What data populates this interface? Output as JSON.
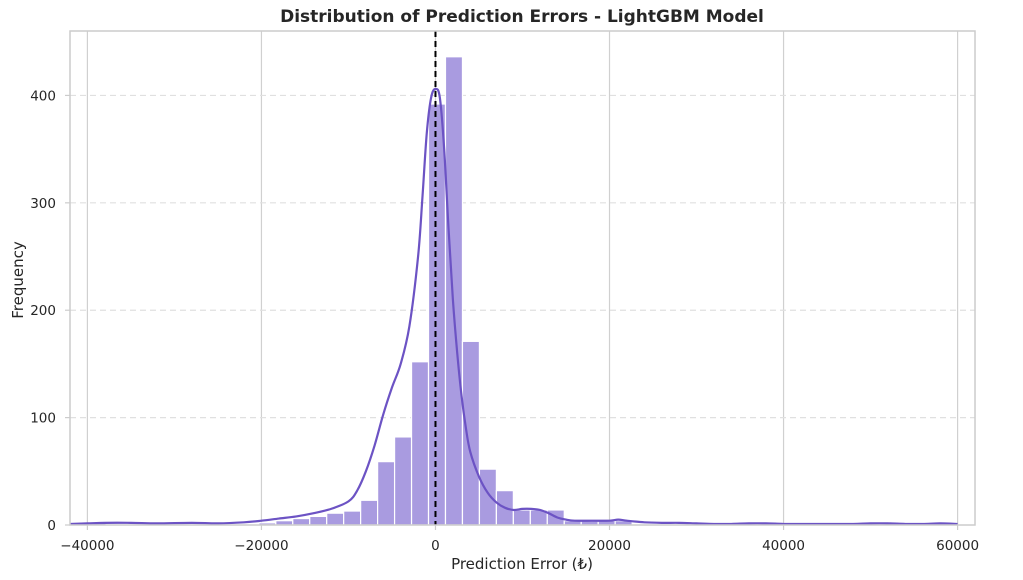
{
  "chart_data": {
    "type": "bar",
    "title": "Distribution of Prediction Errors - LightGBM Model",
    "xlabel": "Prediction Error (₺)",
    "ylabel": "Frequency",
    "xlim": [
      -42000,
      62000
    ],
    "ylim": [
      0,
      460
    ],
    "x_ticks": [
      -40000,
      -20000,
      0,
      20000,
      40000,
      60000
    ],
    "x_tick_labels": [
      "−40000",
      "−20000",
      "0",
      "20000",
      "40000",
      "60000"
    ],
    "y_ticks": [
      0,
      100,
      200,
      300,
      400
    ],
    "y_tick_labels": [
      "0",
      "100",
      "200",
      "300",
      "400"
    ],
    "grid": true,
    "bin_width": 1950,
    "bins": [
      {
        "x0": -39800,
        "count": 2
      },
      {
        "x0": -35900,
        "count": 1
      },
      {
        "x0": -33950,
        "count": 1
      },
      {
        "x0": -28100,
        "count": 1
      },
      {
        "x0": -20300,
        "count": 2
      },
      {
        "x0": -18350,
        "count": 4
      },
      {
        "x0": -16400,
        "count": 6
      },
      {
        "x0": -14450,
        "count": 8
      },
      {
        "x0": -12500,
        "count": 11
      },
      {
        "x0": -10550,
        "count": 13
      },
      {
        "x0": -8600,
        "count": 23
      },
      {
        "x0": -6650,
        "count": 59
      },
      {
        "x0": -4700,
        "count": 82
      },
      {
        "x0": -2750,
        "count": 152
      },
      {
        "x0": -800,
        "count": 392
      },
      {
        "x0": 1150,
        "count": 436
      },
      {
        "x0": 3100,
        "count": 171
      },
      {
        "x0": 5050,
        "count": 52
      },
      {
        "x0": 7000,
        "count": 32
      },
      {
        "x0": 8950,
        "count": 14
      },
      {
        "x0": 10900,
        "count": 14
      },
      {
        "x0": 12850,
        "count": 14
      },
      {
        "x0": 14800,
        "count": 4
      },
      {
        "x0": 16750,
        "count": 4
      },
      {
        "x0": 18700,
        "count": 4
      },
      {
        "x0": 20650,
        "count": 4
      },
      {
        "x0": 26500,
        "count": 1
      },
      {
        "x0": 36250,
        "count": 1
      },
      {
        "x0": 49900,
        "count": 1
      },
      {
        "x0": 57700,
        "count": 2
      }
    ],
    "kde": {
      "x": [
        -42000,
        -40000,
        -38000,
        -35000,
        -32000,
        -28000,
        -25000,
        -22000,
        -20000,
        -18000,
        -16000,
        -14000,
        -12000,
        -10000,
        -9000,
        -8000,
        -7000,
        -6000,
        -5000,
        -4000,
        -3000,
        -2000,
        -1500,
        -1000,
        -500,
        0,
        500,
        1000,
        1500,
        2000,
        2500,
        3000,
        3500,
        4000,
        5000,
        6000,
        7000,
        8000,
        9000,
        10000,
        11000,
        12000,
        13000,
        14000,
        15000,
        16000,
        18000,
        20000,
        21000,
        22000,
        24000,
        26000,
        28000,
        30000,
        32000,
        34000,
        36000,
        38000,
        40000,
        42000,
        45000,
        48000,
        50000,
        52000,
        54000,
        56000,
        58000,
        60000
      ],
      "y": [
        1,
        1.5,
        2,
        2,
        1.5,
        2,
        1.5,
        2.5,
        4,
        6,
        8,
        11,
        15,
        22,
        32,
        50,
        74,
        103,
        128,
        150,
        185,
        250,
        305,
        365,
        398,
        406,
        398,
        350,
        276,
        210,
        160,
        120,
        90,
        68,
        45,
        30,
        21,
        16,
        14,
        15,
        15,
        14,
        11,
        7,
        5,
        4,
        4,
        4,
        5,
        4,
        2.5,
        2,
        2,
        1.5,
        1,
        1,
        1.5,
        1.5,
        1,
        1,
        1,
        1,
        1.5,
        1.5,
        1,
        1,
        1.5,
        1
      ]
    },
    "reference_line": {
      "x": 0,
      "style": "dashed",
      "color": "#000000"
    },
    "bar_color": "#a99be0",
    "bar_edge_color": "#ffffff",
    "kde_color": "#6c53c4",
    "grid_color": "#e0e0e0"
  }
}
